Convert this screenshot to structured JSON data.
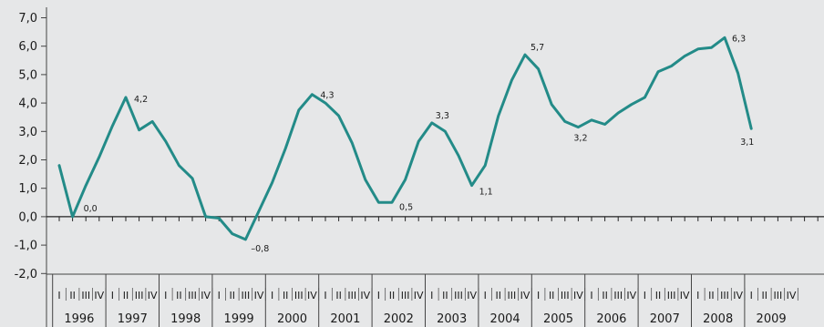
{
  "chart_data": {
    "type": "line",
    "title": "",
    "xlabel": "",
    "ylabel": "",
    "ylim": [
      -2.0,
      7.0
    ],
    "y_ticks": [
      "7,0",
      "6,0",
      "5,0",
      "4,0",
      "3,0",
      "2,0",
      "1,0",
      "0,0",
      "-1,0",
      "-2,0"
    ],
    "grid": false,
    "background": "#e6e7e8",
    "line_color": "#238b88",
    "years": [
      "1996",
      "1997",
      "1998",
      "1999",
      "2000",
      "2001",
      "2002",
      "2003",
      "2004",
      "2005",
      "2006",
      "2007",
      "2008",
      "2009"
    ],
    "quarter_labels": [
      "I",
      "II",
      "III",
      "IV"
    ],
    "series": [
      {
        "values": [
          1.8,
          0.0,
          1.1,
          2.1,
          3.2,
          4.2,
          3.05,
          3.35,
          2.65,
          1.8,
          1.35,
          0.0,
          -0.05,
          -0.6,
          -0.8,
          0.2,
          1.2,
          2.4,
          3.75,
          4.3,
          4.0,
          3.55,
          2.6,
          1.3,
          0.5,
          0.5,
          1.3,
          2.65,
          3.3,
          3.0,
          2.15,
          1.1,
          1.8,
          3.55,
          4.8,
          5.7,
          5.2,
          3.95,
          3.35,
          3.15,
          3.4,
          3.25,
          3.65,
          3.95,
          4.2,
          5.1,
          5.3,
          5.65,
          5.9,
          5.95,
          6.3,
          5.05,
          3.1
        ]
      }
    ],
    "data_labels": [
      {
        "index": 1,
        "text": "0,0"
      },
      {
        "index": 5,
        "text": "4,2"
      },
      {
        "index": 14,
        "text": "–0,8"
      },
      {
        "index": 19,
        "text": "4,3"
      },
      {
        "index": 25,
        "text": "0,5"
      },
      {
        "index": 28,
        "text": "3,3"
      },
      {
        "index": 31,
        "text": "1,1"
      },
      {
        "index": 35,
        "text": "5,7"
      },
      {
        "index": 39,
        "text": "3,2"
      },
      {
        "index": 50,
        "text": "6,3"
      },
      {
        "index": 52,
        "text": "3,1"
      }
    ]
  }
}
